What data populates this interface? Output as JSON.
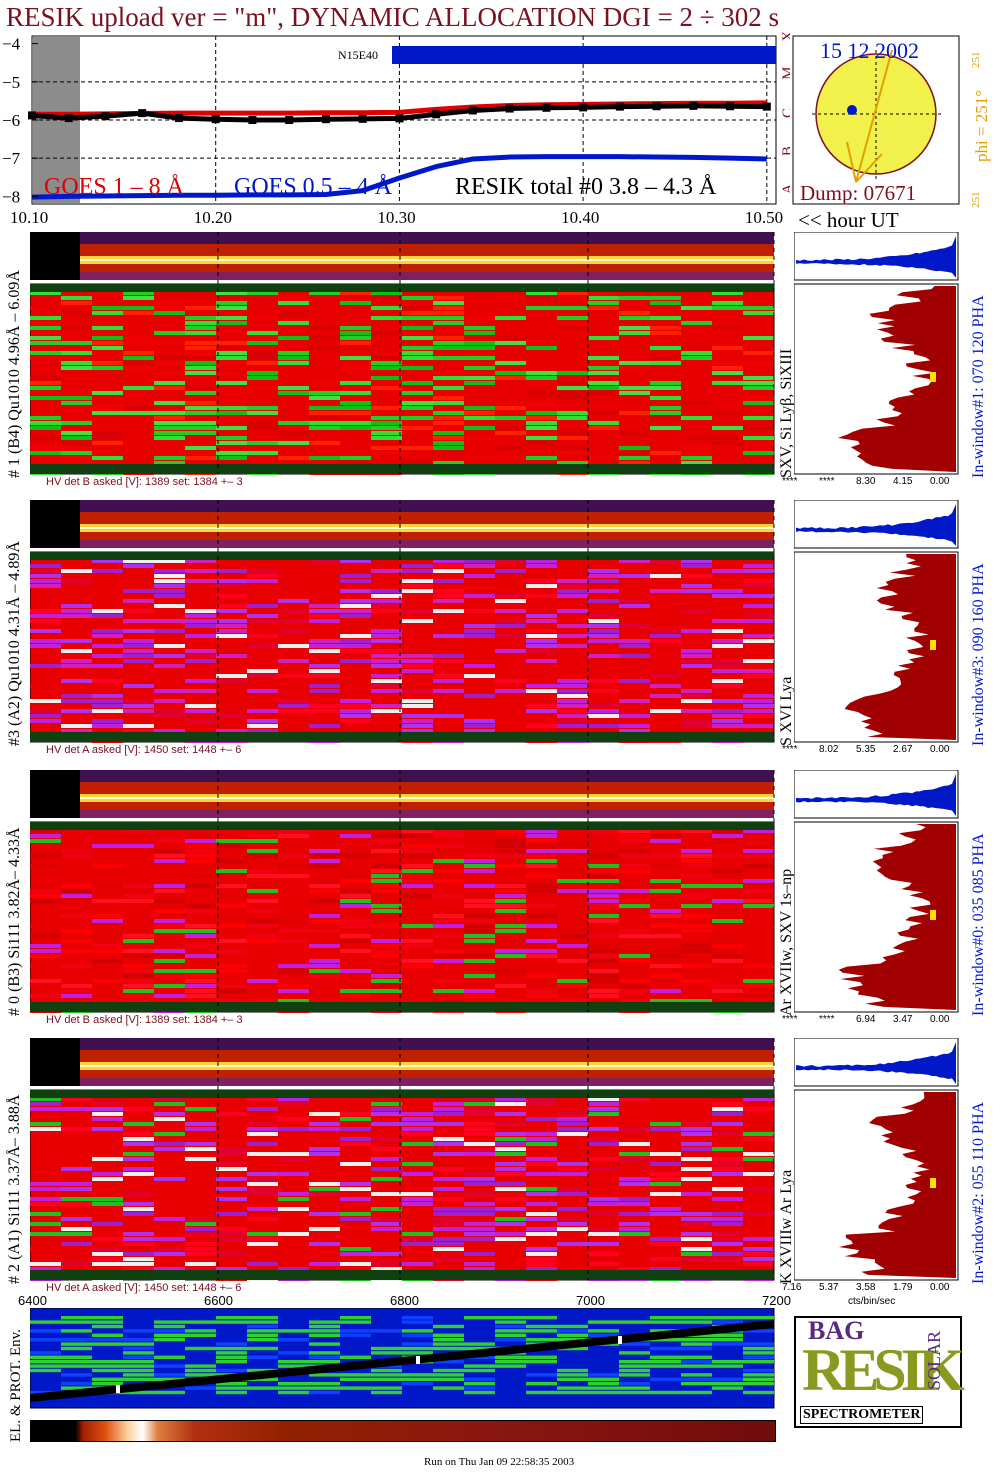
{
  "header": {
    "title": "RESIK upload ver = \"m\", DYNAMIC ALLOCATION  DGI =   2 ÷ 302 s"
  },
  "colors": {
    "title": "#7a1020",
    "goes_long": "#e00000",
    "goes_short": "#0018c8",
    "resik_total": "#000000",
    "sun_disk": "#f2f04a",
    "histogram": "#a00000",
    "histogram_top": "#0018c8"
  },
  "goes_plot": {
    "y_ticks": [
      "−4",
      "−5",
      "−6",
      "−7",
      "−8"
    ],
    "class_letters": [
      "A",
      "B",
      "C",
      "M",
      "X"
    ],
    "x_ticks": [
      "10.10",
      "10.20",
      "10.30",
      "10.40",
      "10.50"
    ],
    "x_unit": "<< hour UT",
    "flag_label": "N15E40",
    "legend_goes_long": "GOES 1 – 8 Å",
    "legend_goes_short": "GOES 0.5 – 4 Å",
    "legend_resik": "RESIK total #0  3.8 – 4.3 Å"
  },
  "chart_data": {
    "type": "line",
    "title": "RESIK upload ver = \"m\", DYNAMIC ALLOCATION  DGI =   2 ÷ 302 s",
    "xlabel": "<< hour UT",
    "ylabel": "",
    "xlim": [
      10.1,
      10.505
    ],
    "ylim": [
      -8.2,
      -3.8
    ],
    "x": [
      10.1,
      10.12,
      10.14,
      10.16,
      10.18,
      10.2,
      10.22,
      10.24,
      10.26,
      10.28,
      10.3,
      10.32,
      10.34,
      10.36,
      10.38,
      10.4,
      10.42,
      10.44,
      10.46,
      10.48,
      10.5
    ],
    "series": [
      {
        "name": "GOES 1 – 8 Å",
        "values": [
          -5.85,
          -5.85,
          -5.84,
          -5.83,
          -5.82,
          -5.82,
          -5.82,
          -5.82,
          -5.81,
          -5.81,
          -5.8,
          -5.72,
          -5.66,
          -5.62,
          -5.6,
          -5.59,
          -5.58,
          -5.57,
          -5.56,
          -5.56,
          -5.55
        ]
      },
      {
        "name": "GOES 0.5 – 4 Å",
        "values": [
          -8.02,
          -8.0,
          -7.99,
          -7.98,
          -7.97,
          -7.97,
          -7.96,
          -7.96,
          -7.95,
          -7.85,
          -7.52,
          -7.22,
          -7.02,
          -6.97,
          -6.96,
          -6.96,
          -6.96,
          -6.97,
          -6.98,
          -7.0,
          -7.02
        ]
      },
      {
        "name": "RESIK total #0  3.8 – 4.3 Å",
        "values": [
          -5.88,
          -5.95,
          -5.9,
          -5.82,
          -5.95,
          -5.98,
          -6.0,
          -6.0,
          -5.98,
          -5.97,
          -5.96,
          -5.85,
          -5.75,
          -5.7,
          -5.68,
          -5.67,
          -5.65,
          -5.64,
          -5.63,
          -5.64,
          -5.65
        ]
      }
    ]
  },
  "sun": {
    "date": "15 12 2002",
    "phi_label": "phi = 251°",
    "phi_small_top": "251",
    "phi_small_bottom": "251",
    "dump": "Dump: 07671"
  },
  "panels": [
    {
      "label": "# 1 (B4) Qu1010 4.96Å – 6.09Å",
      "lines": "SXV, Si Lyβ, SiXIII",
      "window": "In-window#1:  070 120 PHA",
      "hv": "HV det B asked [V]:  1389 set:  1384 +–    3",
      "hist_ticks": [
        "****",
        "****",
        "8.30",
        "4.15",
        "0.00"
      ]
    },
    {
      "label": "#3 (A2) Qu1010  4.31Å – 4.89Å",
      "lines": "S XVI Lya",
      "window": "In-window#3:  090 160 PHA",
      "hv": "HV det A asked [V]:  1450 set:  1448 +–    6",
      "hist_ticks": [
        "****",
        "8.02",
        "5.35",
        "2.67",
        "0.00"
      ]
    },
    {
      "label": "# 0 (B3) Si111  3.82Å– 4.33Å",
      "lines": "Ar XVIIw,  SXV 1s–np",
      "window": "In-window#0:  035 085 PHA",
      "hv": "HV det B asked [V]:  1389 set:  1384 +–    3",
      "hist_ticks": [
        "****",
        "****",
        "6.94",
        "3.47",
        "0.00"
      ]
    },
    {
      "label": "# 2 (A1) Si111  3.37Å– 3.88Å",
      "lines": "K XVIIIw  Ar Lya",
      "window": "In-window#2:  055 110 PHA",
      "hv": "HV det A asked [V]:  1450 set:  1448 +–    6",
      "hist_ticks": [
        "7.16",
        "5.37",
        "3.58",
        "1.79",
        "0.00"
      ],
      "hist_unit": "cts/bin/sec"
    }
  ],
  "env_plot": {
    "label": "EL. & PROT. Env.",
    "x_ticks": [
      "6400",
      "6600",
      "6800",
      "7000",
      "7200"
    ]
  },
  "logo": {
    "letters_main": "RESIK",
    "letters_top": "BAG",
    "letters_side": "SOLAR",
    "bottom": "SPECTROMETER"
  },
  "footer": {
    "run": "Run on Thu Jan 09 22:58:35 2003"
  }
}
